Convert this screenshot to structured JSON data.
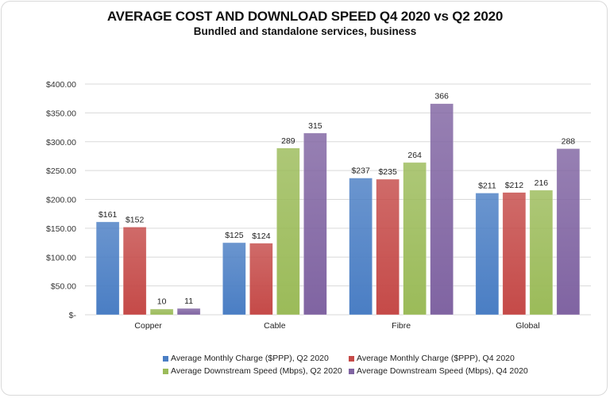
{
  "chart_data": {
    "type": "bar",
    "title": "AVERAGE COST AND DOWNLOAD SPEED Q4 2020 vs Q2 2020",
    "subtitle": "Bundled and standalone services, business",
    "xlabel": "",
    "ylabel": "",
    "ylim": [
      0,
      400
    ],
    "yticks": [
      0,
      50,
      100,
      150,
      200,
      250,
      300,
      350,
      400
    ],
    "ytick_labels": [
      "$-",
      "$50.00",
      "$100.00",
      "$150.00",
      "$200.00",
      "$250.00",
      "$300.00",
      "$350.00",
      "$400.00"
    ],
    "grid": true,
    "legend_position": "bottom",
    "categories": [
      "Copper",
      "Cable",
      "Fibre",
      "Global"
    ],
    "series": [
      {
        "name": "Average Monthly Charge ($PPP), Q2 2020",
        "color": "#4a7ec4",
        "values": [
          161,
          125,
          237,
          211
        ],
        "labels": [
          "$161",
          "$125",
          "$237",
          "$211"
        ]
      },
      {
        "name": "Average Monthly Charge ($PPP), Q4 2020",
        "color": "#c54a48",
        "values": [
          152,
          124,
          235,
          212
        ],
        "labels": [
          "$152",
          "$124",
          "$235",
          "$212"
        ]
      },
      {
        "name": "Average Downstream Speed (Mbps), Q2 2020",
        "color": "#9bbb59",
        "values": [
          10,
          289,
          264,
          216
        ],
        "labels": [
          "10",
          "289",
          "264",
          "216"
        ]
      },
      {
        "name": "Average Downstream Speed (Mbps), Q4 2020",
        "color": "#8064a2",
        "values": [
          11,
          315,
          366,
          288
        ],
        "labels": [
          "11",
          "315",
          "366",
          "288"
        ]
      }
    ]
  }
}
